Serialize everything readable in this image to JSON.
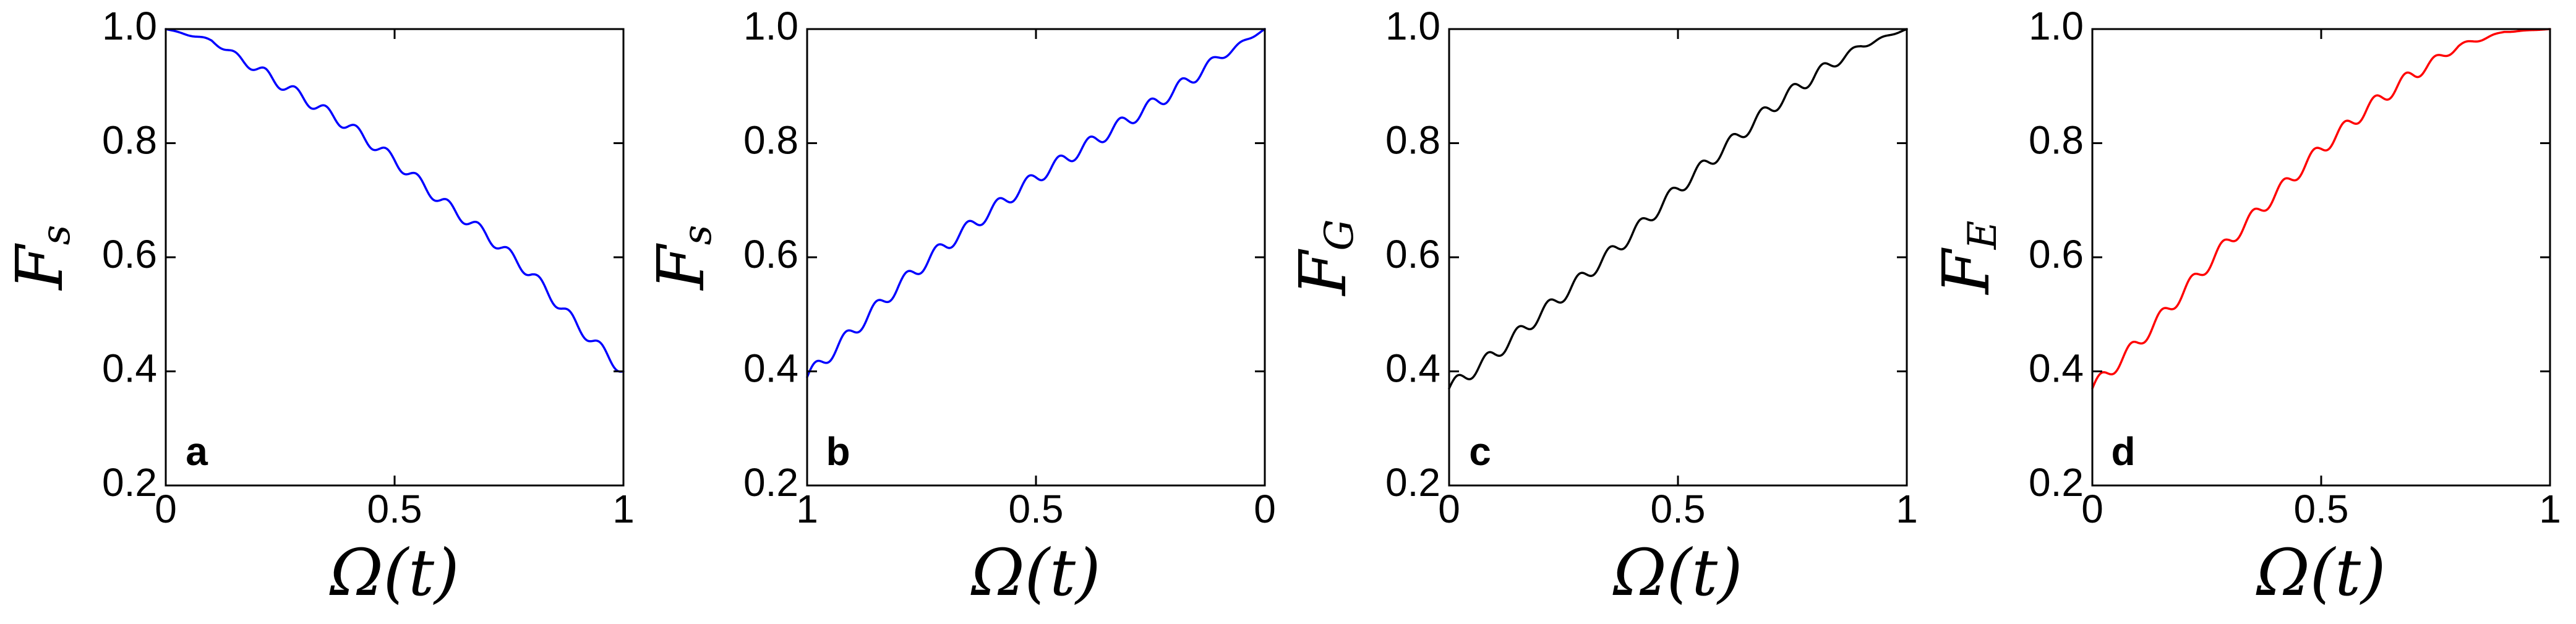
{
  "chart_data": [
    {
      "type": "line",
      "panel_label": "a",
      "xlabel": "Ω(t)",
      "ylabel": "F_s",
      "xlim": [
        0,
        1
      ],
      "x_reversed": false,
      "ylim": [
        0.2,
        1.0
      ],
      "x_ticks": [
        0,
        0.5,
        1
      ],
      "x_tick_labels": [
        "0",
        "0.5",
        "1"
      ],
      "y_ticks": [
        0.2,
        0.4,
        0.6,
        0.8,
        1.0
      ],
      "y_tick_labels": [
        "0.2",
        "0.4",
        "0.6",
        "0.8",
        "1.0"
      ],
      "grid": false,
      "oscillation": {
        "cycles": 15,
        "amplitude": 0.01
      },
      "series": [
        {
          "color": "#0000ff",
          "x": [
            0,
            0.1,
            0.2,
            0.3,
            0.4,
            0.5,
            0.6,
            0.7,
            0.8,
            0.9,
            1.0
          ],
          "y": [
            1.0,
            0.98,
            0.93,
            0.88,
            0.83,
            0.77,
            0.7,
            0.64,
            0.57,
            0.48,
            0.4
          ]
        }
      ]
    },
    {
      "type": "line",
      "panel_label": "b",
      "xlabel": "Ω(t)",
      "ylabel": "F_s",
      "xlim": [
        1,
        0
      ],
      "x_reversed": true,
      "ylim": [
        0.2,
        1.0
      ],
      "x_ticks": [
        1,
        0.5,
        0
      ],
      "x_tick_labels": [
        "1",
        "0.5",
        "0"
      ],
      "y_ticks": [
        0.2,
        0.4,
        0.6,
        0.8,
        1.0
      ],
      "y_tick_labels": [
        "0.2",
        "0.4",
        "0.6",
        "0.8",
        "1.0"
      ],
      "grid": false,
      "oscillation": {
        "cycles": 15,
        "amplitude": 0.012
      },
      "series": [
        {
          "color": "#0000ff",
          "x": [
            1.0,
            0.9,
            0.8,
            0.7,
            0.6,
            0.5,
            0.4,
            0.3,
            0.2,
            0.1,
            0.0
          ],
          "y": [
            0.39,
            0.47,
            0.55,
            0.62,
            0.68,
            0.74,
            0.79,
            0.84,
            0.89,
            0.95,
            1.0
          ]
        }
      ]
    },
    {
      "type": "line",
      "panel_label": "c",
      "xlabel": "Ω(t)",
      "ylabel": "F_G",
      "xlim": [
        0,
        1
      ],
      "x_reversed": false,
      "ylim": [
        0.2,
        1.0
      ],
      "x_ticks": [
        0,
        0.5,
        1
      ],
      "x_tick_labels": [
        "0",
        "0.5",
        "1"
      ],
      "y_ticks": [
        0.2,
        0.4,
        0.6,
        0.8,
        1.0
      ],
      "y_tick_labels": [
        "0.2",
        "0.4",
        "0.6",
        "0.8",
        "1.0"
      ],
      "grid": false,
      "oscillation": {
        "cycles": 15,
        "amplitude": 0.012
      },
      "series": [
        {
          "color": "#000000",
          "x": [
            0,
            0.1,
            0.2,
            0.3,
            0.4,
            0.5,
            0.6,
            0.7,
            0.8,
            0.9,
            1.0
          ],
          "y": [
            0.37,
            0.43,
            0.5,
            0.57,
            0.64,
            0.72,
            0.79,
            0.86,
            0.92,
            0.97,
            1.0
          ]
        }
      ]
    },
    {
      "type": "line",
      "panel_label": "d",
      "xlabel": "Ω(t)",
      "ylabel": "F_E",
      "xlim": [
        0,
        1
      ],
      "x_reversed": false,
      "ylim": [
        0.2,
        1.0
      ],
      "x_ticks": [
        0,
        0.5,
        1
      ],
      "x_tick_labels": [
        "0",
        "0.5",
        "1"
      ],
      "y_ticks": [
        0.2,
        0.4,
        0.6,
        0.8,
        1.0
      ],
      "y_tick_labels": [
        "0.2",
        "0.4",
        "0.6",
        "0.8",
        "1.0"
      ],
      "grid": false,
      "oscillation": {
        "cycles": 15,
        "amplitude": 0.012
      },
      "series": [
        {
          "color": "#ff0000",
          "x": [
            0,
            0.1,
            0.2,
            0.3,
            0.4,
            0.5,
            0.6,
            0.7,
            0.8,
            0.9,
            1.0
          ],
          "y": [
            0.37,
            0.45,
            0.54,
            0.63,
            0.71,
            0.79,
            0.86,
            0.92,
            0.97,
            0.995,
            1.0
          ]
        }
      ]
    }
  ]
}
